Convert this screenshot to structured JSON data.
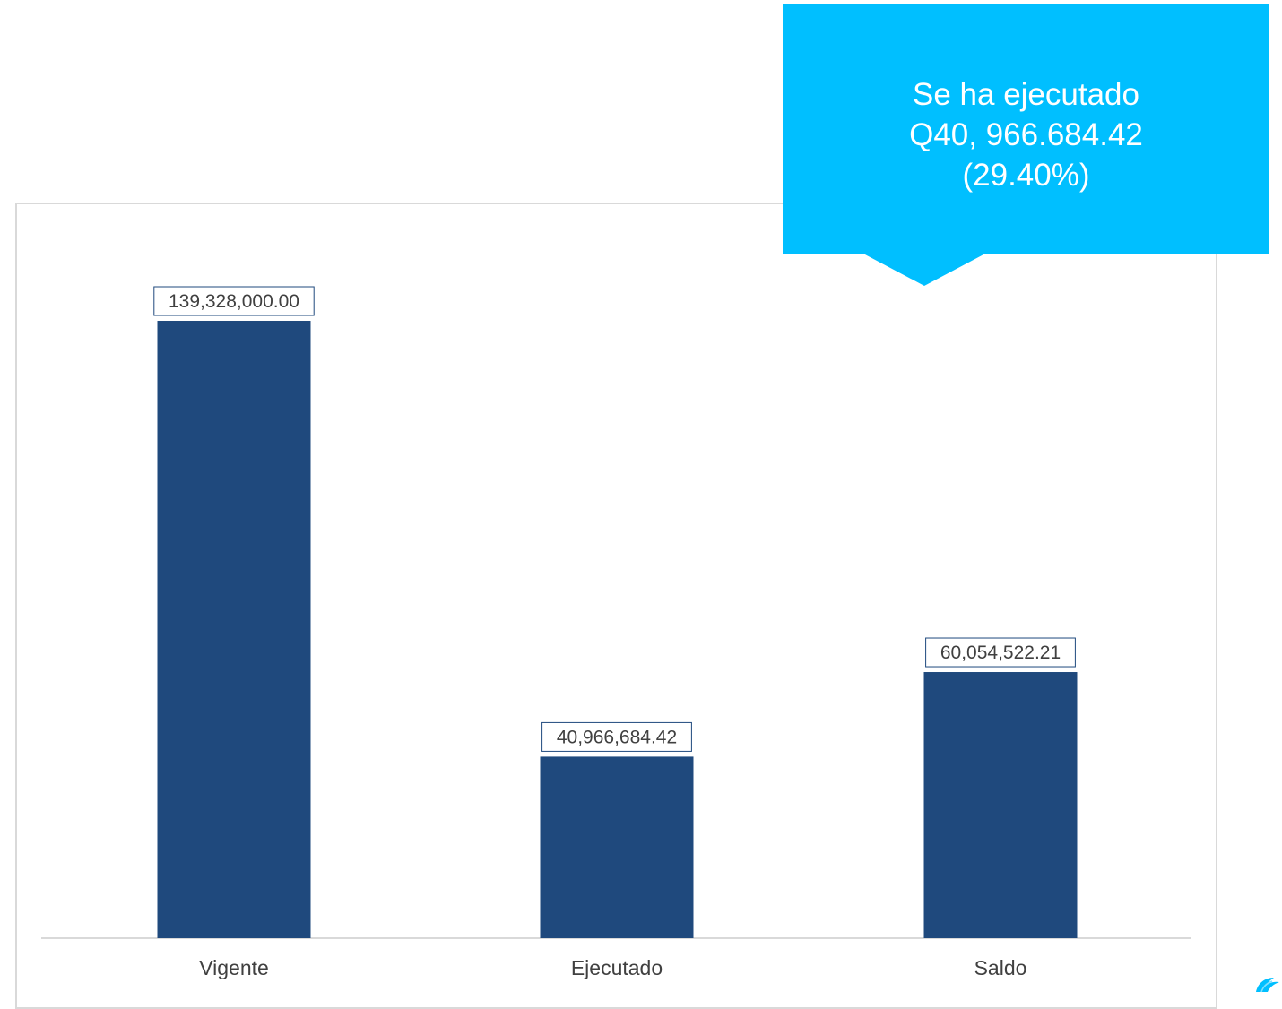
{
  "callout": {
    "line1": "Se ha ejecutado",
    "line2": "Q40, 966.684.42",
    "line3": "(29.40%)"
  },
  "colors": {
    "bar": "#1f497d",
    "callout": "#00bfff",
    "label_border": "#1f497d",
    "axis": "#d9d9d9"
  },
  "chart_data": {
    "type": "bar",
    "categories": [
      "Vigente",
      "Ejecutado",
      "Saldo"
    ],
    "values": [
      139328000.0,
      40966684.42,
      60054522.21
    ],
    "value_labels": [
      "139,328,000.00",
      "40,966,684.42",
      "60,054,522.21"
    ],
    "title": "",
    "xlabel": "",
    "ylabel": "",
    "ylim": [
      0,
      139328000.0
    ],
    "grid": false,
    "legend": "none"
  },
  "logo": {
    "name": "leaf-logo-icon"
  }
}
